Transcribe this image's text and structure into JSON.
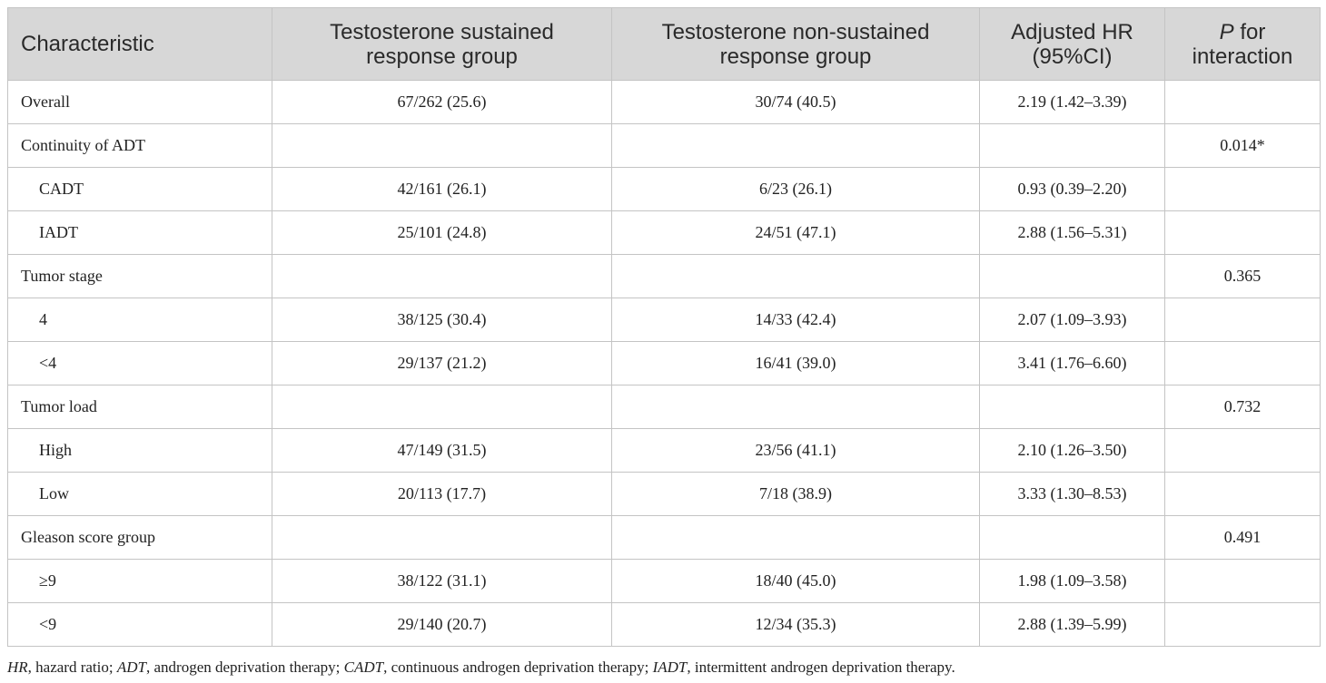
{
  "table": {
    "header": [
      [
        {
          "text": "Characteristic"
        }
      ],
      [
        {
          "text": "Testosterone sustained response group"
        }
      ],
      [
        {
          "text": "Testosterone non-sustained response group"
        }
      ],
      [
        {
          "text": "Adjusted HR (95%CI)"
        }
      ],
      [
        {
          "text": "P",
          "italic": true
        },
        {
          "text": " for interaction"
        }
      ]
    ],
    "rows": [
      {
        "cells": [
          "Overall",
          "67/262 (25.6)",
          "30/74 (40.5)",
          "2.19 (1.42–3.39)",
          null
        ]
      },
      {
        "cells": [
          "Continuity of ADT",
          null,
          null,
          null,
          "0.014*"
        ]
      },
      {
        "cells": [
          "CADT",
          "42/161 (26.1)",
          "6/23 (26.1)",
          "0.93 (0.39–2.20)",
          null
        ],
        "sub": true
      },
      {
        "cells": [
          "IADT",
          "25/101 (24.8)",
          "24/51 (47.1)",
          "2.88 (1.56–5.31)",
          null
        ],
        "sub": true
      },
      {
        "cells": [
          "Tumor stage",
          null,
          null,
          null,
          "0.365"
        ]
      },
      {
        "cells": [
          "4",
          "38/125 (30.4)",
          "14/33 (42.4)",
          "2.07 (1.09–3.93)",
          null
        ],
        "sub": true
      },
      {
        "cells": [
          "<4",
          "29/137 (21.2)",
          "16/41 (39.0)",
          "3.41 (1.76–6.60)",
          null
        ],
        "sub": true
      },
      {
        "cells": [
          "Tumor load",
          null,
          null,
          null,
          "0.732"
        ]
      },
      {
        "cells": [
          "High",
          "47/149 (31.5)",
          "23/56 (41.1)",
          "2.10 (1.26–3.50)",
          null
        ],
        "sub": true
      },
      {
        "cells": [
          "Low",
          "20/113 (17.7)",
          "7/18 (38.9)",
          "3.33 (1.30–8.53)",
          null
        ],
        "sub": true
      },
      {
        "cells": [
          "Gleason score group",
          null,
          null,
          null,
          "0.491"
        ]
      },
      {
        "cells": [
          "≥9",
          "38/122 (31.1)",
          "18/40 (45.0)",
          "1.98 (1.09–3.58)",
          null
        ],
        "sub": true
      },
      {
        "cells": [
          "<9",
          "29/140 (20.7)",
          "12/34 (35.3)",
          "2.88 (1.39–5.99)",
          null
        ],
        "sub": true
      }
    ],
    "footnote": [
      {
        "text": "HR",
        "italic": true
      },
      {
        "text": ", hazard ratio; "
      },
      {
        "text": "ADT",
        "italic": true
      },
      {
        "text": ", androgen deprivation therapy; "
      },
      {
        "text": "CADT",
        "italic": true
      },
      {
        "text": ", continuous androgen deprivation therapy; "
      },
      {
        "text": "IADT",
        "italic": true
      },
      {
        "text": ", intermittent androgen deprivation therapy."
      }
    ]
  }
}
